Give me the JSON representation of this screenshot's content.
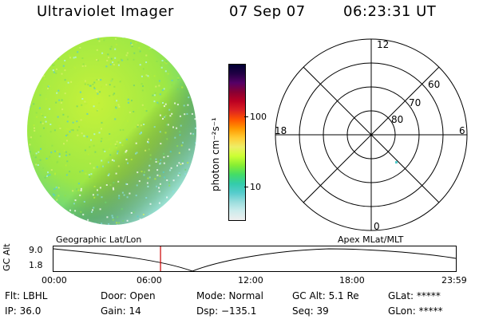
{
  "header": {
    "title": "Ultraviolet Imager",
    "date": "07 Sep 07",
    "time": "06:23:31 UT"
  },
  "colorbar": {
    "unit_label": "photon cm⁻²s⁻¹",
    "tick_100": "100",
    "tick_10": "10",
    "scale": "log",
    "colors": [
      "#000033",
      "#220044",
      "#550066",
      "#880033",
      "#bb0022",
      "#dd2222",
      "#ff5500",
      "#ff9900",
      "#ffcc33",
      "#eeee66",
      "#ccff33",
      "#88ee33",
      "#44dd66",
      "#33ccaa",
      "#55cccc",
      "#99dddd",
      "#ccecec",
      "#eeeeee"
    ]
  },
  "polar": {
    "labels": {
      "top": "12",
      "bottom": "0",
      "left": "18",
      "right": "6"
    },
    "rings": [
      "60",
      "70",
      "80"
    ]
  },
  "timeline": {
    "left_title": "Geographic Lat/Lon",
    "right_title": "Apex MLat/MLT",
    "y_axis_label": "GC Alt",
    "y_max": "9.0",
    "y_min": "1.8",
    "x_ticks": [
      "00:00",
      "06:00",
      "12:00",
      "18:00",
      "23:59"
    ],
    "current_time_fraction": 0.266,
    "line_color": "#cc0000"
  },
  "info": {
    "filter": "Flt: LBHL",
    "ip": "IP: 36.0",
    "door": "Door: Open",
    "gain": "Gain: 14",
    "mode": "Mode: Normal",
    "dsp": "Dsp: −135.1",
    "gcalt": "GC Alt: 5.1 Re",
    "seq": "Seq: 39",
    "glat": "GLat: *****",
    "glon": "GLon: *****"
  }
}
